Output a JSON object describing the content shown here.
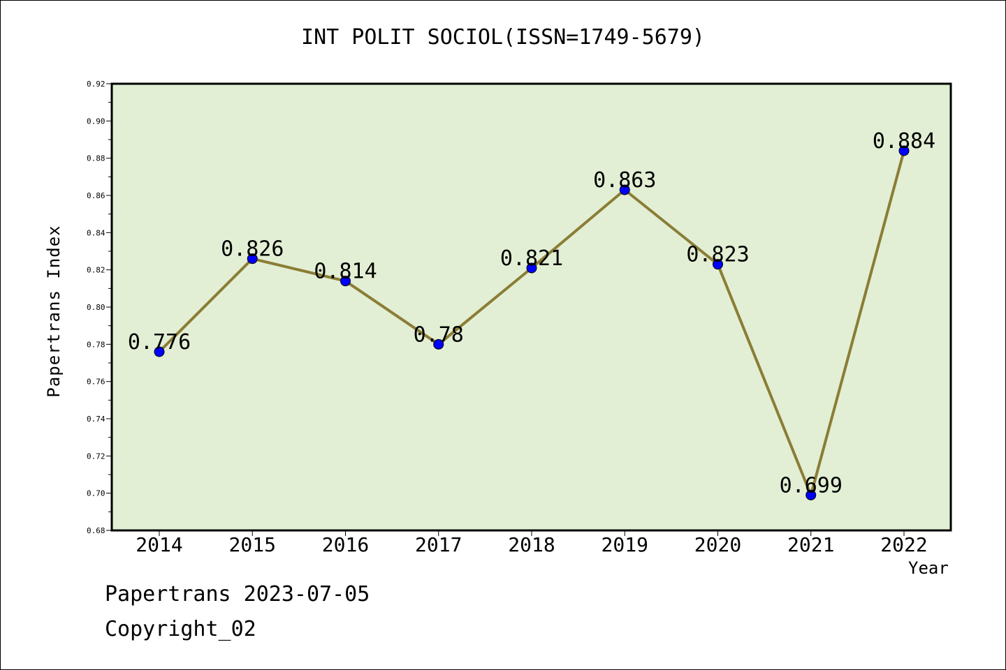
{
  "title": "INT POLIT SOCIOL(ISSN=1749-5679)",
  "footer": {
    "line1": "Papertrans 2023-07-05",
    "line2": "Copyright_02"
  },
  "colors": {
    "plot_bg": "#e2efd4",
    "line": "#8b7d36",
    "marker": "#0000ff"
  },
  "chart_data": {
    "type": "line",
    "title": "INT POLIT SOCIOL(ISSN=1749-5679)",
    "xlabel": "Year",
    "ylabel": "Papertrans Index",
    "categories": [
      "2014",
      "2015",
      "2016",
      "2017",
      "2018",
      "2019",
      "2020",
      "2021",
      "2022"
    ],
    "values": [
      0.776,
      0.826,
      0.814,
      0.78,
      0.821,
      0.863,
      0.823,
      0.699,
      0.884
    ],
    "data_labels": [
      "0.776",
      "0.826",
      "0.814",
      "0.78",
      "0.821",
      "0.863",
      "0.823",
      "0.699",
      "0.884"
    ],
    "ylim": [
      0.68,
      0.92
    ],
    "yticks": [
      "0.68",
      "0.70",
      "0.72",
      "0.74",
      "0.76",
      "0.78",
      "0.80",
      "0.82",
      "0.84",
      "0.86",
      "0.88",
      "0.90",
      "0.92"
    ],
    "grid": false,
    "legend": "none"
  }
}
